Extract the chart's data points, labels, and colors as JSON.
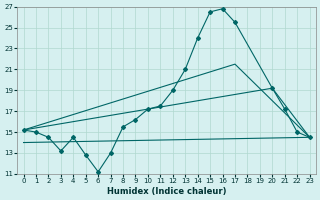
{
  "xlabel": "Humidex (Indice chaleur)",
  "bg_color": "#d6f0f0",
  "grid_color": "#b0d8d0",
  "line_color": "#006666",
  "xlim": [
    -0.5,
    23.5
  ],
  "ylim": [
    11,
    27
  ],
  "yticks": [
    11,
    13,
    15,
    17,
    19,
    21,
    23,
    25,
    27
  ],
  "xticks": [
    0,
    1,
    2,
    3,
    4,
    5,
    6,
    7,
    8,
    9,
    10,
    11,
    12,
    13,
    14,
    15,
    16,
    17,
    18,
    19,
    20,
    21,
    22,
    23
  ],
  "line1_x": [
    0,
    1,
    2,
    3,
    4,
    5,
    6,
    7,
    8,
    9,
    10,
    11,
    12,
    13,
    14,
    15,
    16,
    17,
    20,
    21,
    22,
    23
  ],
  "line1_y": [
    15.2,
    15.0,
    14.5,
    13.2,
    14.5,
    12.8,
    11.2,
    13.0,
    15.5,
    16.2,
    17.2,
    17.5,
    19.0,
    21.0,
    24.0,
    26.5,
    26.8,
    25.5,
    19.2,
    17.2,
    15.0,
    14.5
  ],
  "line2_x": [
    0,
    17,
    23
  ],
  "line2_y": [
    15.2,
    21.5,
    14.5
  ],
  "line3_x": [
    0,
    20,
    23
  ],
  "line3_y": [
    15.2,
    19.2,
    14.5
  ],
  "line4_x": [
    0,
    23
  ],
  "line4_y": [
    14.0,
    14.5
  ]
}
